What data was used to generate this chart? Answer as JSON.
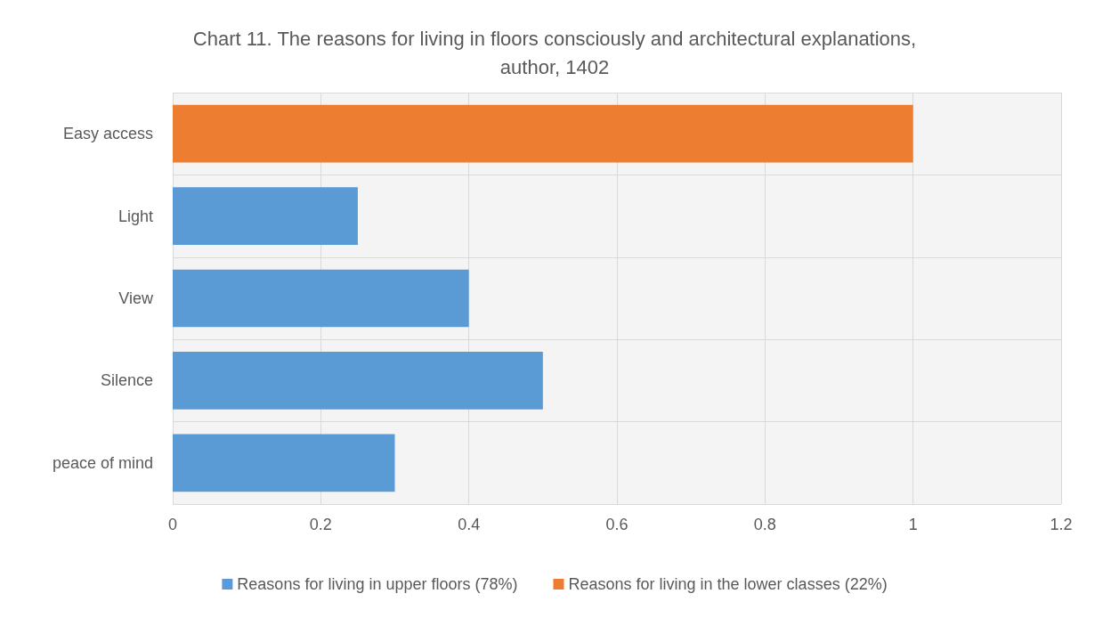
{
  "chart_data": {
    "type": "bar",
    "orientation": "horizontal",
    "stacked": true,
    "title": "Chart 11. The reasons for living in floors consciously and architectural explanations,\nauthor, 1402",
    "categories": [
      "Easy access",
      "Light",
      "View",
      "Silence",
      "peace of mind"
    ],
    "series": [
      {
        "name": "Reasons for living in upper floors (78%)",
        "color": "#5b9bd5",
        "values": [
          null,
          0.25,
          0.4,
          0.5,
          0.3
        ]
      },
      {
        "name": "Reasons for living in the lower classes (22%)",
        "color": "#ed7d31",
        "values": [
          1,
          null,
          null,
          null,
          null
        ]
      }
    ],
    "xlim": [
      0,
      1.2
    ],
    "xticks": [
      0,
      0.2,
      0.4,
      0.6,
      0.8,
      1,
      1.2
    ],
    "grid": true,
    "legend": "bottom"
  }
}
